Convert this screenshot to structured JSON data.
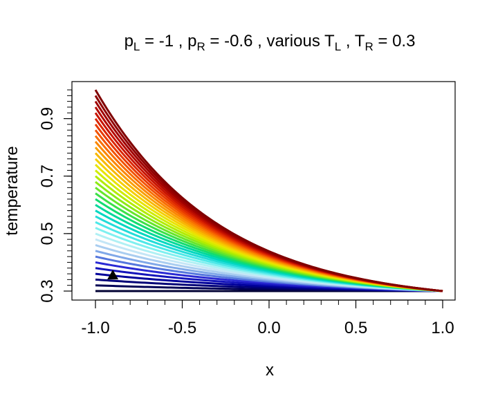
{
  "chart_data": {
    "type": "line",
    "title": {
      "parts": [
        {
          "t": "p",
          "sub": "L",
          "rest": " = -1 ,   "
        },
        {
          "t": "p",
          "sub": "R",
          "rest": " = -0.6 ,  various  "
        },
        {
          "t": "T",
          "sub": "L",
          "rest": " ,  "
        },
        {
          "t": "T",
          "sub": "R",
          "rest": " = 0.3"
        }
      ]
    },
    "xlabel": "x",
    "ylabel": "temperature",
    "xlim": [
      -1.0,
      1.0
    ],
    "ylim": [
      0.28,
      1.02
    ],
    "xticks": [
      -1.0,
      -0.5,
      0.0,
      0.5,
      1.0
    ],
    "xtick_labels": [
      "-1.0",
      "-0.5",
      "0.0",
      "0.5",
      "1.0"
    ],
    "yticks": [
      0.3,
      0.5,
      0.7,
      0.9
    ],
    "ytick_labels": [
      "0.3",
      "0.5",
      "0.7",
      "0.9"
    ],
    "T_R": 0.3,
    "series_TL": [
      0.3,
      0.32,
      0.34,
      0.36,
      0.38,
      0.4,
      0.42,
      0.44,
      0.46,
      0.48,
      0.5,
      0.52,
      0.54,
      0.56,
      0.58,
      0.6,
      0.62,
      0.64,
      0.66,
      0.68,
      0.7,
      0.72,
      0.74,
      0.76,
      0.78,
      0.8,
      0.82,
      0.84,
      0.86,
      0.88,
      0.9,
      0.92,
      0.94,
      0.96,
      0.98,
      1.0
    ],
    "colors": [
      "#000033",
      "#000055",
      "#000077",
      "#00009a",
      "#1414bb",
      "#2a2ad4",
      "#5577dd",
      "#80a8e8",
      "#a9cdf0",
      "#c4e6f6",
      "#b0f0f4",
      "#7ff0f0",
      "#4de8e8",
      "#22dcd8",
      "#00d7c0",
      "#00d89a",
      "#12dc70",
      "#3ce048",
      "#66e62a",
      "#8eea14",
      "#b2ec00",
      "#d0ec00",
      "#e8e400",
      "#f5cf00",
      "#f8b800",
      "#fa9f00",
      "#fb8700",
      "#f86e00",
      "#f25200",
      "#e83a00",
      "#db2600",
      "#c81400",
      "#b40a00",
      "#a00000",
      "#900000",
      "#800000"
    ],
    "marker": {
      "shape": "triangle",
      "x": -0.9,
      "y": 0.355,
      "color": "#000000"
    }
  }
}
